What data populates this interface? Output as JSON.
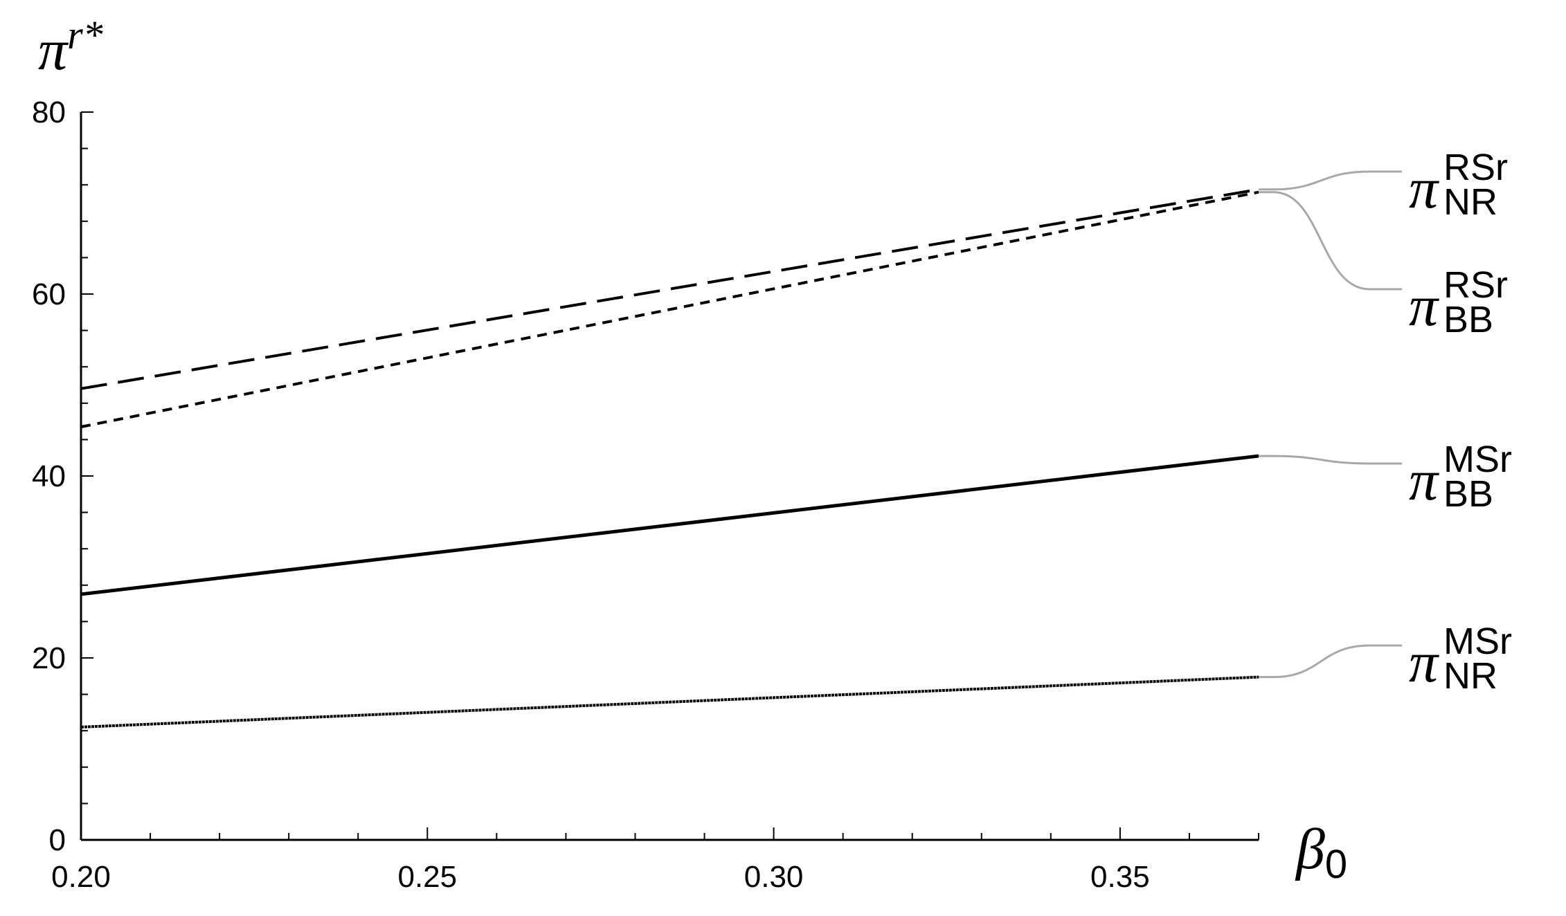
{
  "chart_data": {
    "type": "line",
    "xlabel": {
      "main": "β",
      "sub": "0"
    },
    "ylabel": {
      "main": "π",
      "sup": "r*"
    },
    "xlim": [
      0.2,
      0.37
    ],
    "ylim": [
      0,
      80
    ],
    "x_ticks": [
      "0.20",
      "0.25",
      "0.30",
      "0.35"
    ],
    "y_ticks": [
      "0",
      "20",
      "40",
      "60",
      "80"
    ],
    "grid": false,
    "series": [
      {
        "name": "π_NR^RSr",
        "label": {
          "main": "π",
          "sup": "RSr",
          "sub": "NR"
        },
        "style": "long-dash",
        "x": [
          0.2,
          0.37
        ],
        "y": [
          49.6,
          71.5
        ]
      },
      {
        "name": "π_BB^RSr",
        "label": {
          "main": "π",
          "sup": "RSr",
          "sub": "BB"
        },
        "style": "short-dash",
        "x": [
          0.2,
          0.37
        ],
        "y": [
          45.4,
          71.2
        ]
      },
      {
        "name": "π_BB^MSr",
        "label": {
          "main": "π",
          "sup": "MSr",
          "sub": "BB"
        },
        "style": "solid",
        "x": [
          0.2,
          0.37
        ],
        "y": [
          27.0,
          42.2
        ]
      },
      {
        "name": "π_NR^MSr",
        "label": {
          "main": "π",
          "sup": "MSr",
          "sub": "NR"
        },
        "style": "dotted",
        "x": [
          0.2,
          0.37
        ],
        "y": [
          12.4,
          17.9
        ]
      }
    ]
  }
}
